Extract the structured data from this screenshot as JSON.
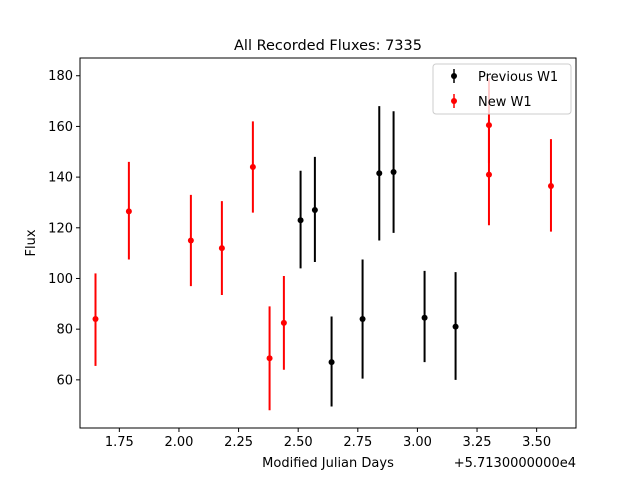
{
  "chart_data": {
    "type": "scatter",
    "title": "All Recorded Fluxes: 7335",
    "xlabel": "Modified Julian Days",
    "ylabel": "Flux",
    "x_offset_label": "+5.7130000000e4",
    "xlim": [
      1.585,
      3.665
    ],
    "ylim": [
      41,
      187
    ],
    "xticks": [
      {
        "value": 1.75,
        "label": "1.75"
      },
      {
        "value": 2.0,
        "label": "2.00"
      },
      {
        "value": 2.25,
        "label": "2.25"
      },
      {
        "value": 2.5,
        "label": "2.50"
      },
      {
        "value": 2.75,
        "label": "2.75"
      },
      {
        "value": 3.0,
        "label": "3.00"
      },
      {
        "value": 3.25,
        "label": "3.25"
      },
      {
        "value": 3.5,
        "label": "3.50"
      }
    ],
    "yticks": [
      {
        "value": 60,
        "label": "60"
      },
      {
        "value": 80,
        "label": "80"
      },
      {
        "value": 100,
        "label": "100"
      },
      {
        "value": 120,
        "label": "120"
      },
      {
        "value": 140,
        "label": "140"
      },
      {
        "value": 160,
        "label": "160"
      },
      {
        "value": 180,
        "label": "180"
      }
    ],
    "grid": false,
    "legend": "top-right",
    "series": [
      {
        "name": "Previous W1",
        "color": "#000000",
        "points": [
          {
            "x": 2.51,
            "y": 123,
            "ylow": 104,
            "yhigh": 142.5
          },
          {
            "x": 2.57,
            "y": 127,
            "ylow": 106.5,
            "yhigh": 148
          },
          {
            "x": 2.64,
            "y": 67,
            "ylow": 49.5,
            "yhigh": 85
          },
          {
            "x": 2.77,
            "y": 84,
            "ylow": 60.5,
            "yhigh": 107.5
          },
          {
            "x": 2.84,
            "y": 141.5,
            "ylow": 115,
            "yhigh": 168
          },
          {
            "x": 2.9,
            "y": 142,
            "ylow": 118,
            "yhigh": 166
          },
          {
            "x": 3.03,
            "y": 84.5,
            "ylow": 67,
            "yhigh": 103
          },
          {
            "x": 3.16,
            "y": 81,
            "ylow": 60,
            "yhigh": 102.5
          }
        ]
      },
      {
        "name": "New W1",
        "color": "#ff0000",
        "points": [
          {
            "x": 1.65,
            "y": 84,
            "ylow": 65.5,
            "yhigh": 102
          },
          {
            "x": 1.79,
            "y": 126.5,
            "ylow": 107.5,
            "yhigh": 146
          },
          {
            "x": 2.05,
            "y": 115,
            "ylow": 97,
            "yhigh": 133
          },
          {
            "x": 2.18,
            "y": 112,
            "ylow": 93.5,
            "yhigh": 130.5
          },
          {
            "x": 2.31,
            "y": 144,
            "ylow": 126,
            "yhigh": 162
          },
          {
            "x": 2.38,
            "y": 68.5,
            "ylow": 48,
            "yhigh": 89
          },
          {
            "x": 2.44,
            "y": 82.5,
            "ylow": 64,
            "yhigh": 101
          },
          {
            "x": 3.3,
            "y": 160.5,
            "ylow": 145.5,
            "yhigh": 179
          },
          {
            "x": 3.3,
            "y": 141,
            "ylow": 121,
            "yhigh": 161
          },
          {
            "x": 3.56,
            "y": 136.5,
            "ylow": 118.5,
            "yhigh": 155
          }
        ]
      }
    ]
  }
}
